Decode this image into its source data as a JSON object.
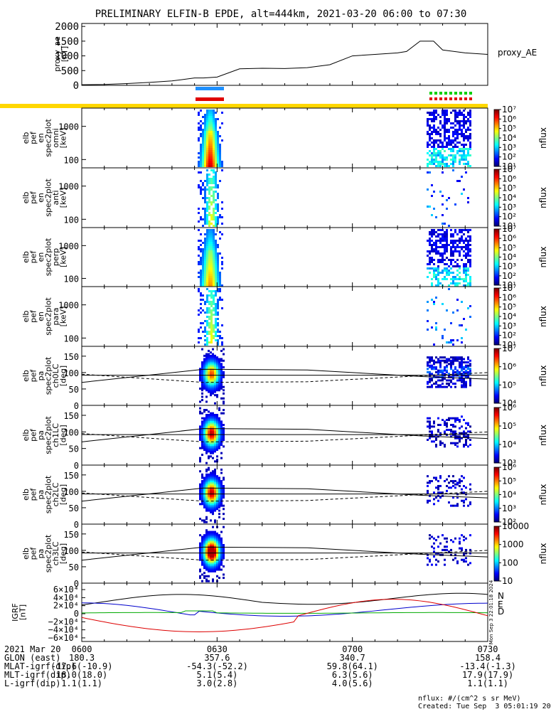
{
  "title": "PRELIMINARY ELFIN-B EPDE, alt=444km, 2021-03-20 06:00 to 07:30",
  "colors": {
    "ae_line": "#000000",
    "orbit_bar": "#ffd700",
    "blue_marker": "#1e90ff",
    "red_marker": "#e00000",
    "green_marker": "#00d000",
    "igrf_n": "#0000cc",
    "igrf_e": "#00aa00",
    "igrf_d": "#dd0000",
    "igrf_total": "#000000"
  },
  "proxy_ae": {
    "ylabel_line1": "proxy_ae",
    "ylabel_line2": "[nT]",
    "legend": "proxy_AE",
    "yticks": [
      "2000",
      "1500",
      "1000",
      "500",
      "0"
    ],
    "ylim": [
      0,
      2100
    ]
  },
  "spectro_panels": [
    {
      "label": [
        "elb",
        "pef",
        "en",
        "spec2plot",
        "omni",
        "[keV]"
      ],
      "yticks": [
        "1000",
        "100"
      ],
      "cbar_ticks": [
        "10⁷",
        "10⁶",
        "10⁵",
        "10⁴",
        "10³",
        "10²",
        "10¹"
      ],
      "cbar_label": "nflux"
    },
    {
      "label": [
        "elb",
        "pef",
        "en",
        "spec2plot",
        "anti",
        "[keV]"
      ],
      "yticks": [
        "1000",
        "100"
      ],
      "cbar_ticks": [
        "10⁷",
        "10⁶",
        "10⁵",
        "10⁴",
        "10³",
        "10²",
        "10¹"
      ],
      "cbar_label": "nflux"
    },
    {
      "label": [
        "elb",
        "pef",
        "en",
        "spec2plot",
        "perp",
        "[keV]"
      ],
      "yticks": [
        "1000",
        "100"
      ],
      "cbar_ticks": [
        "10⁷",
        "10⁶",
        "10⁵",
        "10⁴",
        "10³",
        "10²",
        "10¹"
      ],
      "cbar_label": "nflux"
    },
    {
      "label": [
        "elb",
        "pef",
        "en",
        "spec2plot",
        "para",
        "[keV]"
      ],
      "yticks": [
        "1000",
        "100"
      ],
      "cbar_ticks": [
        "10⁷",
        "10⁶",
        "10⁵",
        "10⁴",
        "10³",
        "10²",
        "10¹"
      ],
      "cbar_label": "nflux"
    }
  ],
  "pa_panels": [
    {
      "label": [
        "elb",
        "pef",
        "pa",
        "spec2plot",
        "ch0LC",
        "[deg]"
      ],
      "yticks": [
        "150",
        "100",
        "50",
        "0"
      ],
      "cbar_ticks": [
        "10⁷",
        "10⁶",
        "10⁵",
        "10⁴"
      ],
      "cbar_label": "nflux"
    },
    {
      "label": [
        "elb",
        "pef",
        "pa",
        "spec2plot",
        "ch1LC",
        "[deg]"
      ],
      "yticks": [
        "150",
        "100",
        "50",
        "0"
      ],
      "cbar_ticks": [
        "10⁶",
        "10⁵",
        "10⁴",
        "10³"
      ],
      "cbar_label": "nflux"
    },
    {
      "label": [
        "elb",
        "pef",
        "pa",
        "spec2plot",
        "ch2LC",
        "[deg]"
      ],
      "yticks": [
        "150",
        "100",
        "50",
        "0"
      ],
      "cbar_ticks": [
        "10⁶",
        "10⁵",
        "10⁴",
        "10³",
        "10²"
      ],
      "cbar_label": "nflux"
    },
    {
      "label": [
        "elb",
        "pef",
        "pa",
        "spec2plot",
        "ch3LC",
        "[deg]"
      ],
      "yticks": [
        "150",
        "100",
        "50",
        "0"
      ],
      "cbar_ticks": [
        "10000",
        "1000",
        "100",
        "10"
      ],
      "cbar_label": "nflux"
    }
  ],
  "igrf": {
    "ylabel_line1": "IGRF",
    "ylabel_line2": "[nT]",
    "yticks": [
      "6×10⁴",
      "4×10⁴",
      "2×10⁴",
      "0",
      "−2×10⁴",
      "−4×10⁴",
      "−6×10⁴"
    ],
    "legend": [
      "N",
      "E",
      "D"
    ],
    "side_note": "Mon Sep  3 22:01:18 2024"
  },
  "chart_data": {
    "type": "line",
    "title": "PRELIMINARY ELFIN-B EPDE, alt=444km, 2021-03-20 06:00 to 07:30",
    "x_unit": "minutes since 06:00",
    "xlim": [
      0,
      90
    ],
    "series": [
      {
        "name": "proxy_AE",
        "x": [
          0,
          5,
          10,
          15,
          20,
          25,
          27,
          30,
          35,
          40,
          45,
          50,
          55,
          60,
          65,
          70,
          72,
          75,
          78,
          80,
          85,
          90
        ],
        "y": [
          20,
          30,
          60,
          100,
          150,
          250,
          250,
          280,
          560,
          580,
          570,
          600,
          700,
          1000,
          1050,
          1100,
          1150,
          1500,
          1500,
          1200,
          1100,
          1050
        ]
      }
    ],
    "ylim": [
      0,
      2100
    ]
  },
  "table": {
    "rows": [
      {
        "label": "2021 Mar 20",
        "values": [
          "0600",
          "0630",
          "0700",
          "0730"
        ]
      },
      {
        "label": "GLON (east)",
        "values": [
          "180.3",
          "357.6",
          "340.7",
          "158.4"
        ]
      },
      {
        "label": "MLAT-igrf(dip)",
        "values": [
          "-17.6(-10.9)",
          "-54.3(-52.2)",
          "59.8(64.1)",
          "-13.4(-1.3)"
        ]
      },
      {
        "label": "MLT-igrf(dip)",
        "values": [
          "18.0(18.0)",
          "5.1(5.4)",
          "6.3(5.6)",
          "17.9(17.9)"
        ]
      },
      {
        "label": "L-igrf(dip)",
        "values": [
          "1.1(1.1)",
          "3.0(2.8)",
          "4.0(5.6)",
          "1.1(1.1)"
        ]
      }
    ]
  },
  "footer": {
    "units": "nflux: #/(cm^2 s sr MeV)",
    "created": "Created: Tue Sep  3 05:01:19 2024"
  }
}
